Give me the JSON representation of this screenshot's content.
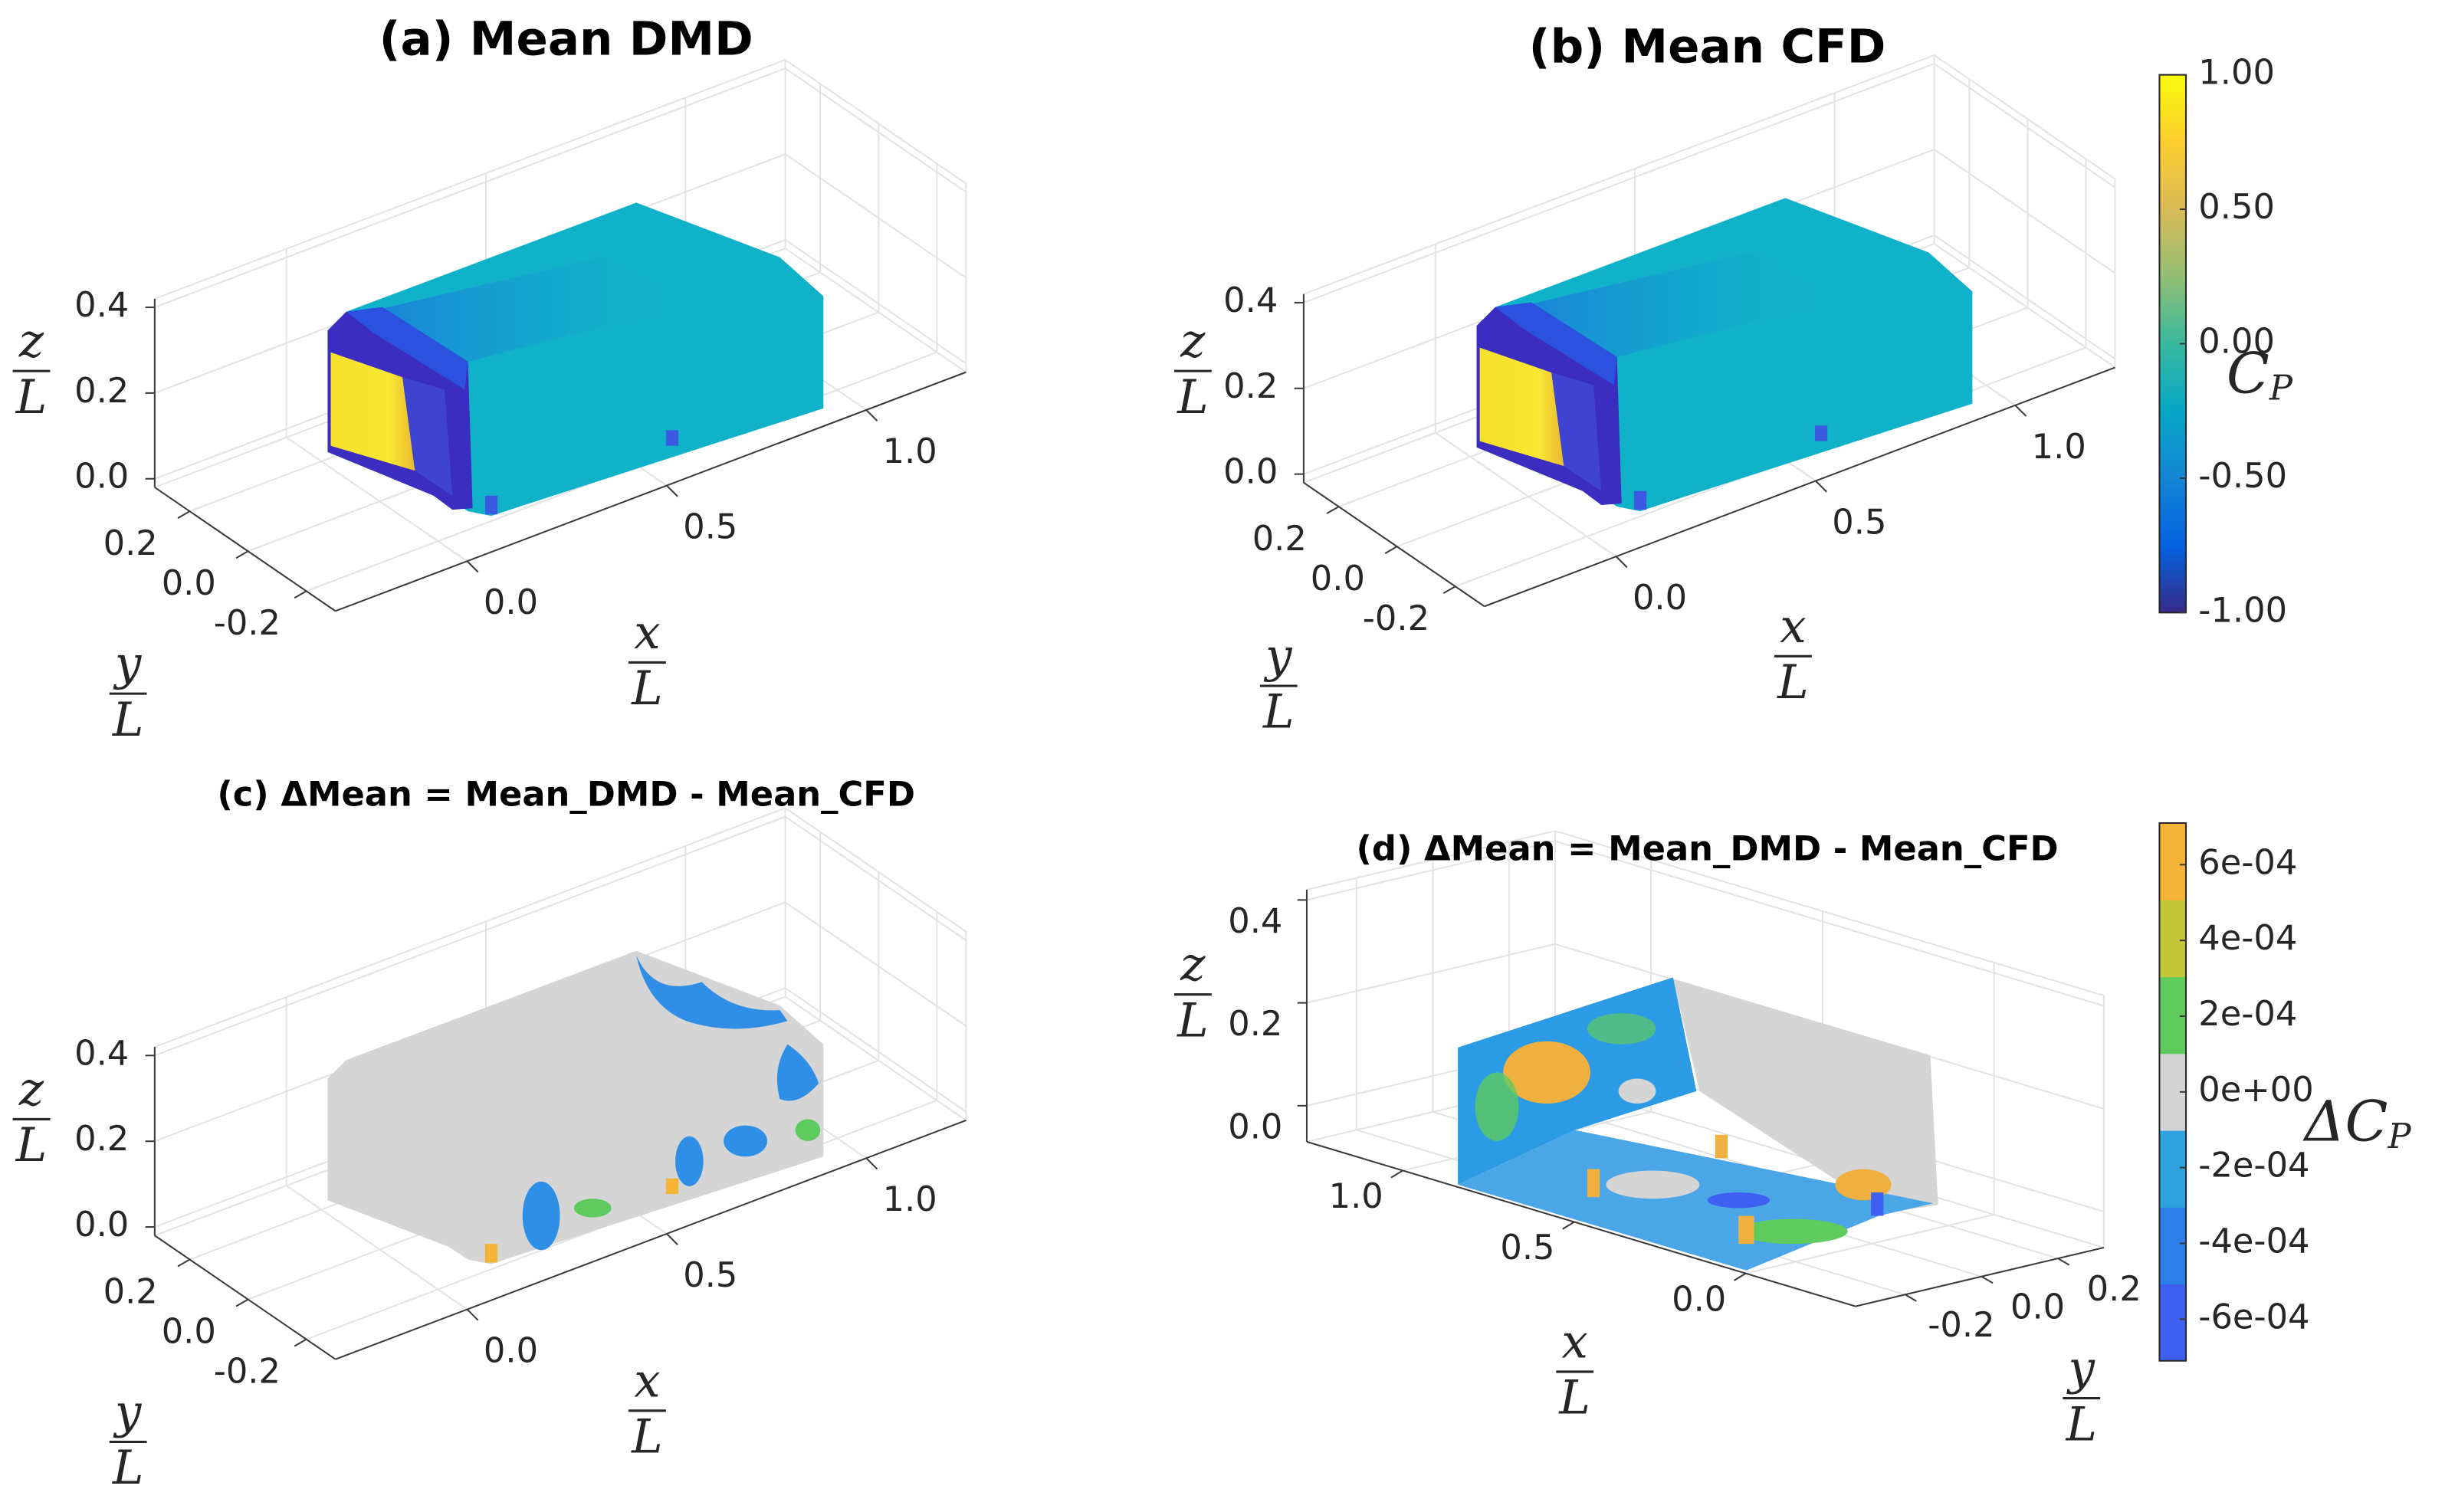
{
  "chart_data": [
    {
      "type": "surface3d",
      "title": "(a) Mean DMD",
      "xlabel": {
        "numerator": "x",
        "denominator": "L"
      },
      "ylabel": {
        "numerator": "y",
        "denominator": "L"
      },
      "zlabel": {
        "numerator": "z",
        "denominator": "L"
      },
      "xlim": [
        -0.33,
        1.25
      ],
      "ylim": [
        -0.3,
        0.32
      ],
      "zlim": [
        -0.02,
        0.42
      ],
      "xticks": [
        {
          "value": 0,
          "label": "0.0"
        },
        {
          "value": 0.5,
          "label": "0.5"
        },
        {
          "value": 1,
          "label": "1.0"
        }
      ],
      "yticks": [
        {
          "value": -0.2,
          "label": "-0.2"
        },
        {
          "value": 0,
          "label": "0.0"
        },
        {
          "value": 0.2,
          "label": "0.2"
        }
      ],
      "zticks": [
        {
          "value": 0,
          "label": "0.0"
        },
        {
          "value": 0.2,
          "label": "0.2"
        },
        {
          "value": 0.4,
          "label": "0.4"
        }
      ],
      "grid": true
    },
    {
      "type": "surface3d",
      "title": "(b) Mean CFD",
      "xlabel": {
        "numerator": "x",
        "denominator": "L"
      },
      "ylabel": {
        "numerator": "y",
        "denominator": "L"
      },
      "zlabel": {
        "numerator": "z",
        "denominator": "L"
      },
      "xlim": [
        -0.33,
        1.25
      ],
      "ylim": [
        -0.3,
        0.32
      ],
      "zlim": [
        -0.02,
        0.42
      ],
      "xticks": [
        {
          "value": 0,
          "label": "0.0"
        },
        {
          "value": 0.5,
          "label": "0.5"
        },
        {
          "value": 1,
          "label": "1.0"
        }
      ],
      "yticks": [
        {
          "value": -0.2,
          "label": "-0.2"
        },
        {
          "value": 0,
          "label": "0.0"
        },
        {
          "value": 0.2,
          "label": "0.2"
        }
      ],
      "zticks": [
        {
          "value": 0,
          "label": "0.0"
        },
        {
          "value": 0.2,
          "label": "0.2"
        },
        {
          "value": 0.4,
          "label": "0.4"
        }
      ],
      "grid": true,
      "colorbar": {
        "label": {
          "main": "C",
          "sub": "P"
        },
        "lim": [
          -1,
          1
        ],
        "colormap": "parula",
        "ticks": [
          {
            "value": 1,
            "label": "1.00"
          },
          {
            "value": 0.5,
            "label": "0.50"
          },
          {
            "value": 0,
            "label": "0.00"
          },
          {
            "value": -0.5,
            "label": "-0.50"
          },
          {
            "value": -1,
            "label": "-1.00"
          }
        ]
      }
    },
    {
      "type": "surface3d",
      "title": "(c) ΔMean = Mean_DMD - Mean_CFD",
      "xlabel": {
        "numerator": "x",
        "denominator": "L"
      },
      "ylabel": {
        "numerator": "y",
        "denominator": "L"
      },
      "zlabel": {
        "numerator": "z",
        "denominator": "L"
      },
      "xlim": [
        -0.33,
        1.25
      ],
      "ylim": [
        -0.3,
        0.32
      ],
      "zlim": [
        -0.02,
        0.42
      ],
      "xticks": [
        {
          "value": 0,
          "label": "0.0"
        },
        {
          "value": 0.5,
          "label": "0.5"
        },
        {
          "value": 1,
          "label": "1.0"
        }
      ],
      "yticks": [
        {
          "value": -0.2,
          "label": "-0.2"
        },
        {
          "value": 0,
          "label": "0.0"
        },
        {
          "value": 0.2,
          "label": "0.2"
        }
      ],
      "zticks": [
        {
          "value": 0,
          "label": "0.0"
        },
        {
          "value": 0.2,
          "label": "0.2"
        },
        {
          "value": 0.4,
          "label": "0.4"
        }
      ],
      "grid": true
    },
    {
      "type": "surface3d",
      "title": "(d) ΔMean = Mean_DMD - Mean_CFD",
      "xlabel": {
        "numerator": "x",
        "denominator": "L"
      },
      "ylabel": {
        "numerator": "y",
        "denominator": "L"
      },
      "zlabel": {
        "numerator": "z",
        "denominator": "L"
      },
      "xlim": [
        -0.32,
        1.28
      ],
      "ylim": [
        -0.33,
        0.32
      ],
      "zlim": [
        -0.07,
        0.42
      ],
      "xticks": [
        {
          "value": 0,
          "label": "0.0"
        },
        {
          "value": 0.5,
          "label": "0.5"
        },
        {
          "value": 1,
          "label": "1.0"
        }
      ],
      "yticks": [
        {
          "value": -0.2,
          "label": "-0.2"
        },
        {
          "value": 0,
          "label": "0.0"
        },
        {
          "value": 0.2,
          "label": "0.2"
        }
      ],
      "zticks": [
        {
          "value": 0,
          "label": "0.0"
        },
        {
          "value": 0.2,
          "label": "0.2"
        },
        {
          "value": 0.4,
          "label": "0.4"
        }
      ],
      "grid": true,
      "colorbar": {
        "label": {
          "main": "ΔC",
          "sub": "P"
        },
        "lim": [
          -0.00071,
          0.00071
        ],
        "colors": [
          "#3f5ff0",
          "#2c7fe8",
          "#2ea3e0",
          "#d4d4d4",
          "#5fcb5f",
          "#c4c63a",
          "#f4b537"
        ],
        "ticks": [
          {
            "value": 0.0006,
            "label": "6e-04"
          },
          {
            "value": 0.0004,
            "label": "4e-04"
          },
          {
            "value": 0.0002,
            "label": "2e-04"
          },
          {
            "value": 0,
            "label": "0e+00"
          },
          {
            "value": -0.0002,
            "label": "-2e-04"
          },
          {
            "value": -0.0004,
            "label": "-4e-04"
          },
          {
            "value": -0.0006,
            "label": "-6e-04"
          }
        ]
      }
    }
  ]
}
